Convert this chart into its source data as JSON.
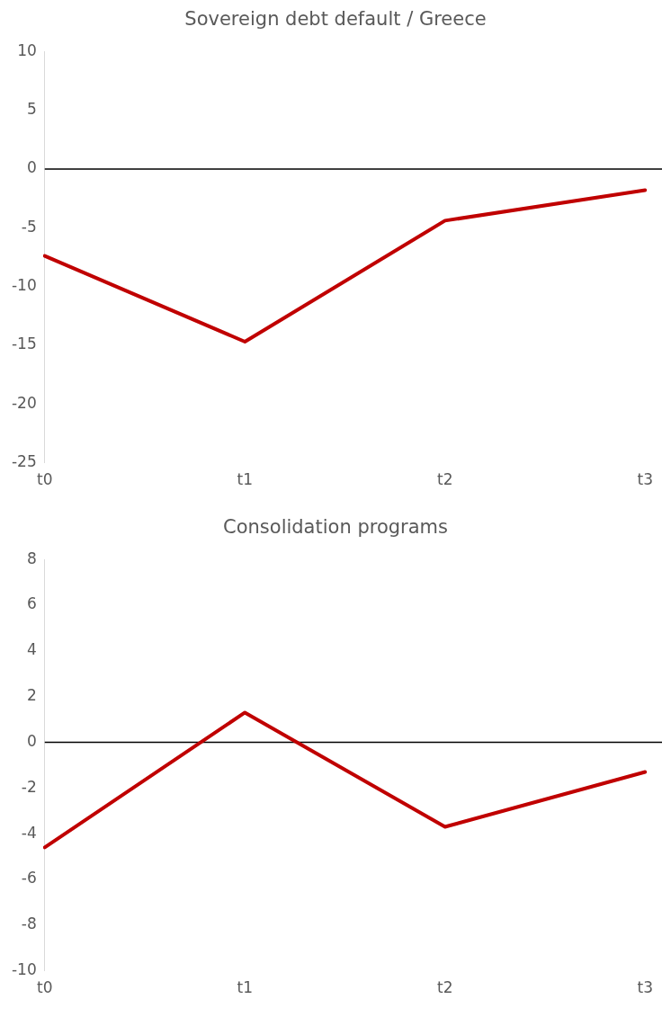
{
  "chart_data": [
    {
      "type": "line",
      "title": "Sovereign debt default / Greece",
      "categories": [
        "t0",
        "t1",
        "t2",
        "t3"
      ],
      "series": [
        {
          "color": "#c00000",
          "values": [
            -7.4,
            -14.7,
            -4.4,
            -1.8
          ]
        }
      ],
      "ylim": [
        -25,
        10
      ],
      "yticks": [
        -25,
        -20,
        -15,
        -10,
        -5,
        0,
        5,
        10
      ],
      "grid": false,
      "legend": false,
      "marker": "none",
      "line_style": "solid",
      "ref_lines": [
        {
          "axis": "y",
          "value": 0,
          "color": "#000000"
        }
      ]
    },
    {
      "type": "line",
      "title": "Consolidation programs",
      "categories": [
        "t0",
        "t1",
        "t2",
        "t3"
      ],
      "series": [
        {
          "color": "#c00000",
          "values": [
            -4.6,
            1.3,
            -3.7,
            -1.3
          ]
        }
      ],
      "ylim": [
        -10,
        8
      ],
      "yticks": [
        -10,
        -8,
        -6,
        -4,
        -2,
        0,
        2,
        4,
        6,
        8
      ],
      "grid": false,
      "legend": false,
      "marker": "none",
      "line_style": "solid",
      "ref_lines": [
        {
          "axis": "y",
          "value": 0,
          "color": "#000000"
        }
      ]
    }
  ]
}
